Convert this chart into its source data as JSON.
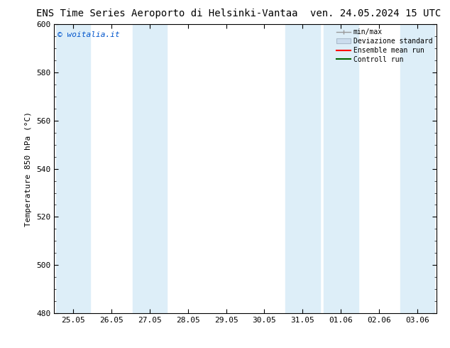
{
  "title_left": "ENS Time Series Aeroporto di Helsinki-Vantaa",
  "title_right": "ven. 24.05.2024 15 UTC",
  "ylabel": "Temperature 850 hPa (°C)",
  "ylim": [
    480,
    600
  ],
  "yticks": [
    480,
    500,
    520,
    540,
    560,
    580,
    600
  ],
  "xtick_labels": [
    "25.05",
    "26.05",
    "27.05",
    "28.05",
    "29.05",
    "30.05",
    "31.05",
    "01.06",
    "02.06",
    "03.06"
  ],
  "bg_color": "#ffffff",
  "plot_bg_color": "#ffffff",
  "shaded_band_color": "#ddeef8",
  "shaded_band_indices": [
    0,
    2,
    6,
    7,
    9
  ],
  "legend_entries": [
    {
      "label": "min/max",
      "style": "errorbar",
      "color": "#999999"
    },
    {
      "label": "Deviazione standard",
      "style": "box",
      "facecolor": "#ccddee",
      "edgecolor": "#aabbcc"
    },
    {
      "label": "Ensemble mean run",
      "style": "line",
      "color": "#ff0000"
    },
    {
      "label": "Controll run",
      "style": "line",
      "color": "#006600"
    }
  ],
  "watermark_text": "© woitalia.it",
  "watermark_color": "#0055cc",
  "title_fontsize": 10,
  "axis_fontsize": 8,
  "tick_fontsize": 8,
  "legend_fontsize": 7
}
